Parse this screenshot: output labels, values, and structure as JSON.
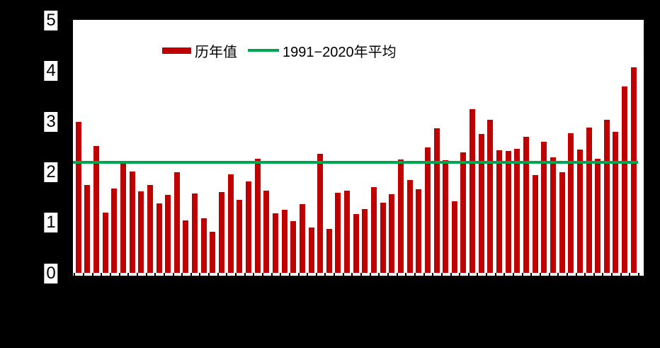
{
  "figure": {
    "background": "#000000",
    "plot_background": "#ffffff"
  },
  "legend": {
    "bars_label": "历年值",
    "line_label": "1991−2020年平均"
  },
  "y_axis": {
    "tick_labels": [
      "0",
      "1",
      "2",
      "3",
      "4",
      "5"
    ]
  },
  "colors": {
    "bar": "#C00000",
    "average_line": "#00A550",
    "tick": "#000000",
    "label_text": "#000000",
    "label_background": "#ffffff"
  },
  "chart_data": {
    "type": "bar",
    "title": "",
    "xlabel": "",
    "ylabel": "",
    "ylim": [
      0,
      5
    ],
    "yticks": [
      0,
      1,
      2,
      3,
      4,
      5
    ],
    "grid": false,
    "legend_position": "inside-top-left",
    "x_tick_labels_visible": false,
    "num_bars": 63,
    "series": [
      {
        "name": "历年值",
        "type": "bar",
        "color": "#C00000",
        "values": [
          3.0,
          1.75,
          2.52,
          1.2,
          1.67,
          2.17,
          2.02,
          1.62,
          1.75,
          1.38,
          1.55,
          2.0,
          1.05,
          1.58,
          1.09,
          0.82,
          1.61,
          1.96,
          1.45,
          1.82,
          2.27,
          1.63,
          1.18,
          1.26,
          1.03,
          1.36,
          0.9,
          2.36,
          0.88,
          1.59,
          1.64,
          1.17,
          1.27,
          1.7,
          1.39,
          1.56,
          2.25,
          1.85,
          1.66,
          2.5,
          2.87,
          2.24,
          1.43,
          2.4,
          3.26,
          2.76,
          3.05,
          2.44,
          2.43,
          2.46,
          2.7,
          1.95,
          2.6,
          2.3,
          2.0,
          2.77,
          2.45,
          2.89,
          2.27,
          3.05,
          2.8,
          3.7,
          4.08
        ]
      },
      {
        "name": "1991−2020年平均",
        "type": "hline",
        "color": "#00A550",
        "value": 2.2
      }
    ]
  }
}
